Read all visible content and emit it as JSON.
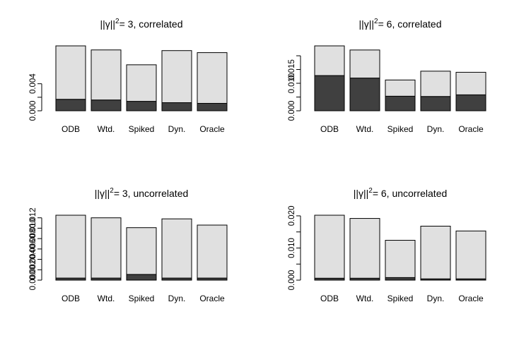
{
  "chart_data": [
    {
      "type": "bar",
      "stacked": true,
      "title": {
        "pre": "||γ||",
        "sup": "2",
        "post": "= 3, correlated"
      },
      "categories": [
        "ODB",
        "Wtd.",
        "Spiked",
        "Dyn.",
        "Oracle"
      ],
      "series": [
        {
          "values": [
            0.0017,
            0.0016,
            0.0014,
            0.0012,
            0.0011
          ],
          "color": "#404040"
        },
        {
          "values": [
            0.0079,
            0.0074,
            0.0054,
            0.0077,
            0.0075
          ],
          "color": "#e0e0e0"
        }
      ],
      "totals": [
        0.0096,
        0.009,
        0.0068,
        0.0089,
        0.0086
      ],
      "ylim": [
        0,
        0.0096
      ],
      "yticks": [
        0.0,
        0.002,
        0.004
      ],
      "ytick_labels": [
        "0.000",
        "",
        "0.004"
      ]
    },
    {
      "type": "bar",
      "stacked": true,
      "title": {
        "pre": "||γ||",
        "sup": "2",
        "post": "= 6, correlated"
      },
      "categories": [
        "ODB",
        "Wtd.",
        "Spiked",
        "Dyn.",
        "Oracle"
      ],
      "series": [
        {
          "values": [
            0.0128,
            0.0119,
            0.0053,
            0.0052,
            0.0058
          ],
          "color": "#404040"
        },
        {
          "values": [
            0.0108,
            0.0102,
            0.0059,
            0.0092,
            0.0082
          ],
          "color": "#e0e0e0"
        }
      ],
      "totals": [
        0.0236,
        0.0221,
        0.0112,
        0.0144,
        0.014
      ],
      "ylim": [
        0,
        0.0236
      ],
      "yticks": [
        0.0,
        0.005,
        0.01,
        0.015,
        0.02
      ],
      "ytick_labels": [
        "0.000",
        "",
        "0.010",
        "0.015",
        ""
      ]
    },
    {
      "type": "bar",
      "stacked": true,
      "title": {
        "pre": "||γ||",
        "sup": "2",
        "post": "= 3, uncorrelated"
      },
      "categories": [
        "ODB",
        "Wtd.",
        "Spiked",
        "Dyn.",
        "Oracle"
      ],
      "series": [
        {
          "values": [
            0.0004,
            0.0004,
            0.0011,
            0.0004,
            0.0004
          ],
          "color": "#404040"
        },
        {
          "values": [
            0.0121,
            0.0116,
            0.009,
            0.0114,
            0.0102
          ],
          "color": "#e0e0e0"
        }
      ],
      "totals": [
        0.0125,
        0.012,
        0.0101,
        0.0118,
        0.0106
      ],
      "ylim": [
        0,
        0.0125
      ],
      "yticks": [
        0.0,
        0.002,
        0.004,
        0.006,
        0.008,
        0.01,
        0.012
      ],
      "ytick_labels": [
        "0.000",
        "0.002",
        "0.004",
        "0.006",
        "0.008",
        "0.010",
        "0.012"
      ]
    },
    {
      "type": "bar",
      "stacked": true,
      "title": {
        "pre": "||γ||",
        "sup": "2",
        "post": "= 6, uncorrelated"
      },
      "categories": [
        "ODB",
        "Wtd.",
        "Spiked",
        "Dyn.",
        "Oracle"
      ],
      "series": [
        {
          "values": [
            0.0006,
            0.0006,
            0.0008,
            0.0004,
            0.0004
          ],
          "color": "#404040"
        },
        {
          "values": [
            0.0196,
            0.0186,
            0.0116,
            0.0164,
            0.0149
          ],
          "color": "#e0e0e0"
        }
      ],
      "totals": [
        0.0202,
        0.0192,
        0.0124,
        0.0168,
        0.0153
      ],
      "ylim": [
        0,
        0.0202
      ],
      "yticks": [
        0.0,
        0.005,
        0.01,
        0.015,
        0.02
      ],
      "ytick_labels": [
        "0.000",
        "",
        "0.010",
        "",
        "0.020"
      ]
    }
  ]
}
